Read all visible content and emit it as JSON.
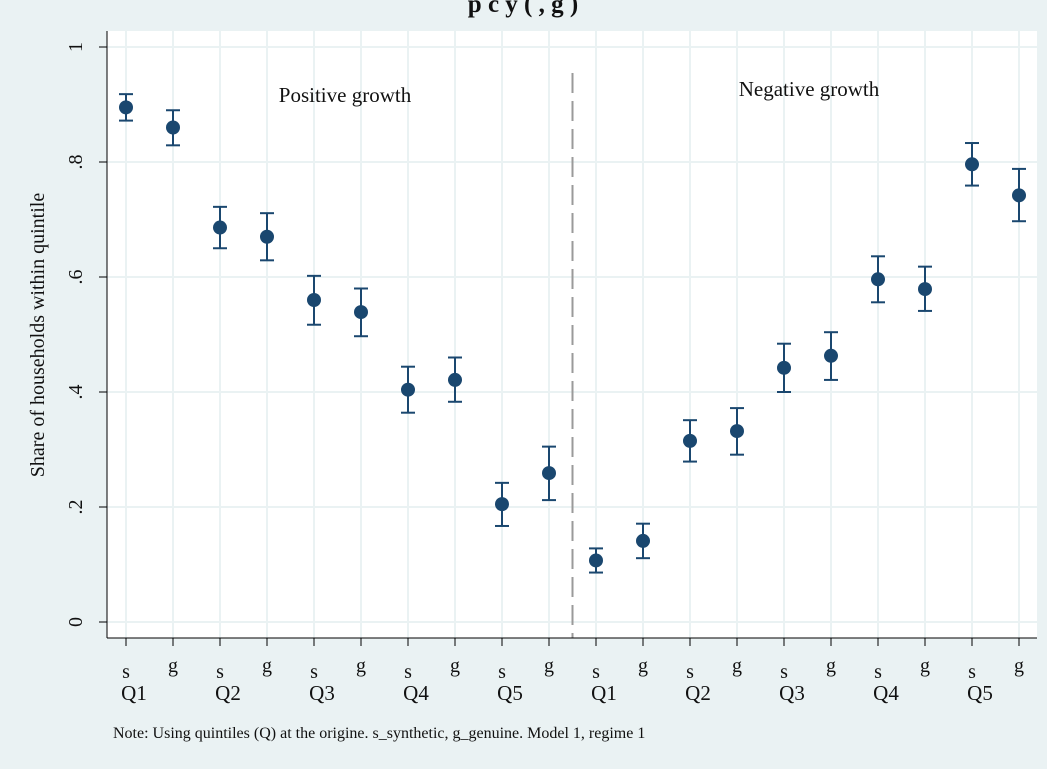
{
  "chart_data": {
    "type": "scatter",
    "title": "p   c        y (      ,     g    )",
    "ylabel": "Share of households within quintile",
    "xlabel": "",
    "ylim": [
      0,
      1
    ],
    "yticks": [
      0,
      0.2,
      0.4,
      0.6,
      0.8,
      1
    ],
    "ytick_labels": [
      "0",
      ".2",
      ".4",
      ".6",
      ".8",
      "1"
    ],
    "grid": true,
    "error_bars": true,
    "marker_color": "#1a476f",
    "plot_background": "#ffffff",
    "figure_background": "#eaf2f3",
    "region_labels": [
      "Positive growth",
      "Negative growth"
    ],
    "divider_after_index": 9,
    "points": [
      {
        "tick": "s",
        "group": "Q1",
        "value": 0.895,
        "low": 0.872,
        "high": 0.918
      },
      {
        "tick": "g",
        "group": "Q1",
        "value": 0.86,
        "low": 0.829,
        "high": 0.89
      },
      {
        "tick": "s",
        "group": "Q2",
        "value": 0.686,
        "low": 0.65,
        "high": 0.722
      },
      {
        "tick": "g",
        "group": "Q2",
        "value": 0.67,
        "low": 0.629,
        "high": 0.711
      },
      {
        "tick": "s",
        "group": "Q3",
        "value": 0.56,
        "low": 0.517,
        "high": 0.602
      },
      {
        "tick": "g",
        "group": "Q3",
        "value": 0.539,
        "low": 0.497,
        "high": 0.58
      },
      {
        "tick": "s",
        "group": "Q4",
        "value": 0.404,
        "low": 0.364,
        "high": 0.444
      },
      {
        "tick": "g",
        "group": "Q4",
        "value": 0.421,
        "low": 0.383,
        "high": 0.46
      },
      {
        "tick": "s",
        "group": "Q5",
        "value": 0.205,
        "low": 0.167,
        "high": 0.242
      },
      {
        "tick": "g",
        "group": "Q5",
        "value": 0.259,
        "low": 0.212,
        "high": 0.305
      },
      {
        "tick": "s",
        "group": "Q1",
        "value": 0.107,
        "low": 0.086,
        "high": 0.128
      },
      {
        "tick": "g",
        "group": "Q1",
        "value": 0.141,
        "low": 0.111,
        "high": 0.171
      },
      {
        "tick": "s",
        "group": "Q2",
        "value": 0.315,
        "low": 0.279,
        "high": 0.351
      },
      {
        "tick": "g",
        "group": "Q2",
        "value": 0.332,
        "low": 0.291,
        "high": 0.372
      },
      {
        "tick": "s",
        "group": "Q3",
        "value": 0.442,
        "low": 0.4,
        "high": 0.484
      },
      {
        "tick": "g",
        "group": "Q3",
        "value": 0.463,
        "low": 0.421,
        "high": 0.504
      },
      {
        "tick": "s",
        "group": "Q4",
        "value": 0.596,
        "low": 0.556,
        "high": 0.636
      },
      {
        "tick": "g",
        "group": "Q4",
        "value": 0.579,
        "low": 0.541,
        "high": 0.618
      },
      {
        "tick": "s",
        "group": "Q5",
        "value": 0.796,
        "low": 0.759,
        "high": 0.833
      },
      {
        "tick": "g",
        "group": "Q5",
        "value": 0.742,
        "low": 0.697,
        "high": 0.788
      }
    ],
    "note": "Note: Using quintiles (Q) at the origine. s_synthetic, g_genuine. Model 1, regime 1"
  }
}
